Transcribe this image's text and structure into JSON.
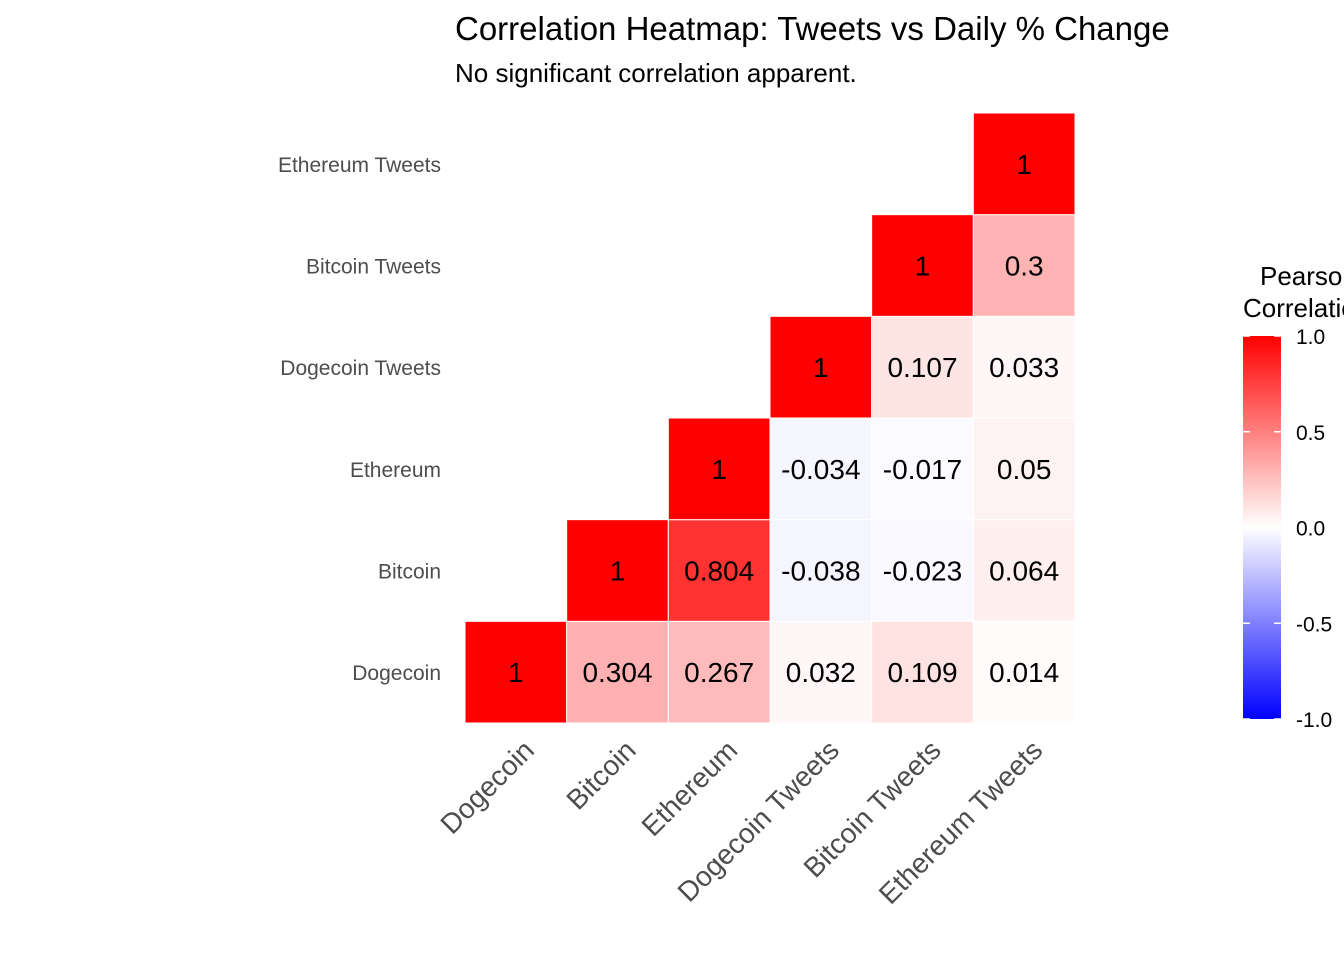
{
  "chart_data": {
    "type": "heatmap",
    "title": "Correlation Heatmap: Tweets vs Daily % Change",
    "subtitle": "No significant correlation apparent.",
    "variables": [
      "Dogecoin",
      "Bitcoin",
      "Ethereum",
      "Dogecoin Tweets",
      "Bitcoin Tweets",
      "Ethereum Tweets"
    ],
    "triangle": "upper",
    "cells": [
      {
        "x": "Dogecoin",
        "y": "Dogecoin",
        "value": 1,
        "label": "1"
      },
      {
        "x": "Bitcoin",
        "y": "Dogecoin",
        "value": 0.304,
        "label": "0.304"
      },
      {
        "x": "Ethereum",
        "y": "Dogecoin",
        "value": 0.267,
        "label": "0.267"
      },
      {
        "x": "Dogecoin Tweets",
        "y": "Dogecoin",
        "value": 0.032,
        "label": "0.032"
      },
      {
        "x": "Bitcoin Tweets",
        "y": "Dogecoin",
        "value": 0.109,
        "label": "0.109"
      },
      {
        "x": "Ethereum Tweets",
        "y": "Dogecoin",
        "value": 0.014,
        "label": "0.014"
      },
      {
        "x": "Bitcoin",
        "y": "Bitcoin",
        "value": 1,
        "label": "1"
      },
      {
        "x": "Ethereum",
        "y": "Bitcoin",
        "value": 0.804,
        "label": "0.804"
      },
      {
        "x": "Dogecoin Tweets",
        "y": "Bitcoin",
        "value": -0.038,
        "label": "-0.038"
      },
      {
        "x": "Bitcoin Tweets",
        "y": "Bitcoin",
        "value": -0.023,
        "label": "-0.023"
      },
      {
        "x": "Ethereum Tweets",
        "y": "Bitcoin",
        "value": 0.064,
        "label": "0.064"
      },
      {
        "x": "Ethereum",
        "y": "Ethereum",
        "value": 1,
        "label": "1"
      },
      {
        "x": "Dogecoin Tweets",
        "y": "Ethereum",
        "value": -0.034,
        "label": "-0.034"
      },
      {
        "x": "Bitcoin Tweets",
        "y": "Ethereum",
        "value": -0.017,
        "label": "-0.017"
      },
      {
        "x": "Ethereum Tweets",
        "y": "Ethereum",
        "value": 0.05,
        "label": "0.05"
      },
      {
        "x": "Dogecoin Tweets",
        "y": "Dogecoin Tweets",
        "value": 1,
        "label": "1"
      },
      {
        "x": "Bitcoin Tweets",
        "y": "Dogecoin Tweets",
        "value": 0.107,
        "label": "0.107"
      },
      {
        "x": "Ethereum Tweets",
        "y": "Dogecoin Tweets",
        "value": 0.033,
        "label": "0.033"
      },
      {
        "x": "Bitcoin Tweets",
        "y": "Bitcoin Tweets",
        "value": 1,
        "label": "1"
      },
      {
        "x": "Ethereum Tweets",
        "y": "Bitcoin Tweets",
        "value": 0.3,
        "label": "0.3"
      },
      {
        "x": "Ethereum Tweets",
        "y": "Ethereum Tweets",
        "value": 1,
        "label": "1"
      }
    ],
    "legend": {
      "title_lines": [
        "Pearson",
        "Correlation"
      ],
      "limits": [
        -1,
        1
      ],
      "ticks": [
        1.0,
        0.5,
        0.0,
        -0.5,
        -1.0
      ],
      "tick_labels": [
        "1.0",
        "0.5",
        "0.0",
        "-0.5",
        "-1.0"
      ],
      "placement": "right"
    },
    "colors": {
      "low": "#0000ff",
      "mid": "#ffffff",
      "high": "#ff0000"
    },
    "grid": false
  }
}
